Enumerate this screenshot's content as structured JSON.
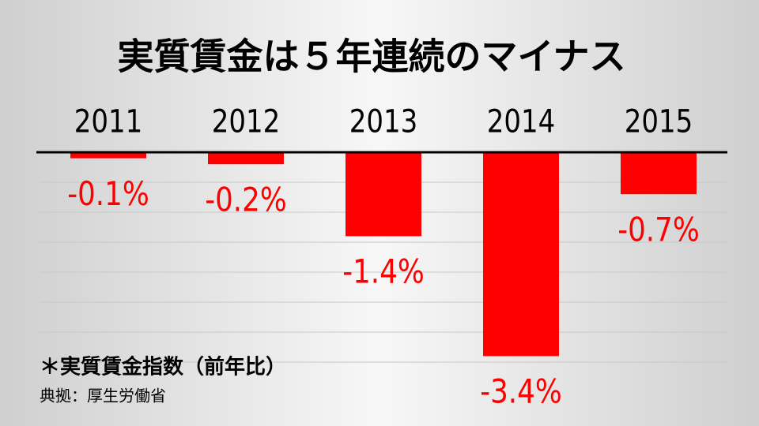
{
  "chart_data": {
    "type": "bar",
    "title": "実質賃金は５年連続のマイナス",
    "categories": [
      "2011",
      "2012",
      "2013",
      "2014",
      "2015"
    ],
    "values": [
      -0.1,
      -0.2,
      -1.4,
      -3.4,
      -0.7
    ],
    "value_labels": [
      "-0.1%",
      "-0.2%",
      "-1.4%",
      "-3.4%",
      "-0.7%"
    ],
    "color": "#ff0000",
    "label_color": "#ff0000",
    "ylim": [
      -3.5,
      0
    ],
    "yticks": [
      0,
      -0.5,
      -1,
      -1.5,
      -2,
      -2.5,
      -3,
      -3.5
    ],
    "grid": true,
    "note": "＊実質賃金指数（前年比）",
    "source": "典拠：厚生労働省"
  }
}
